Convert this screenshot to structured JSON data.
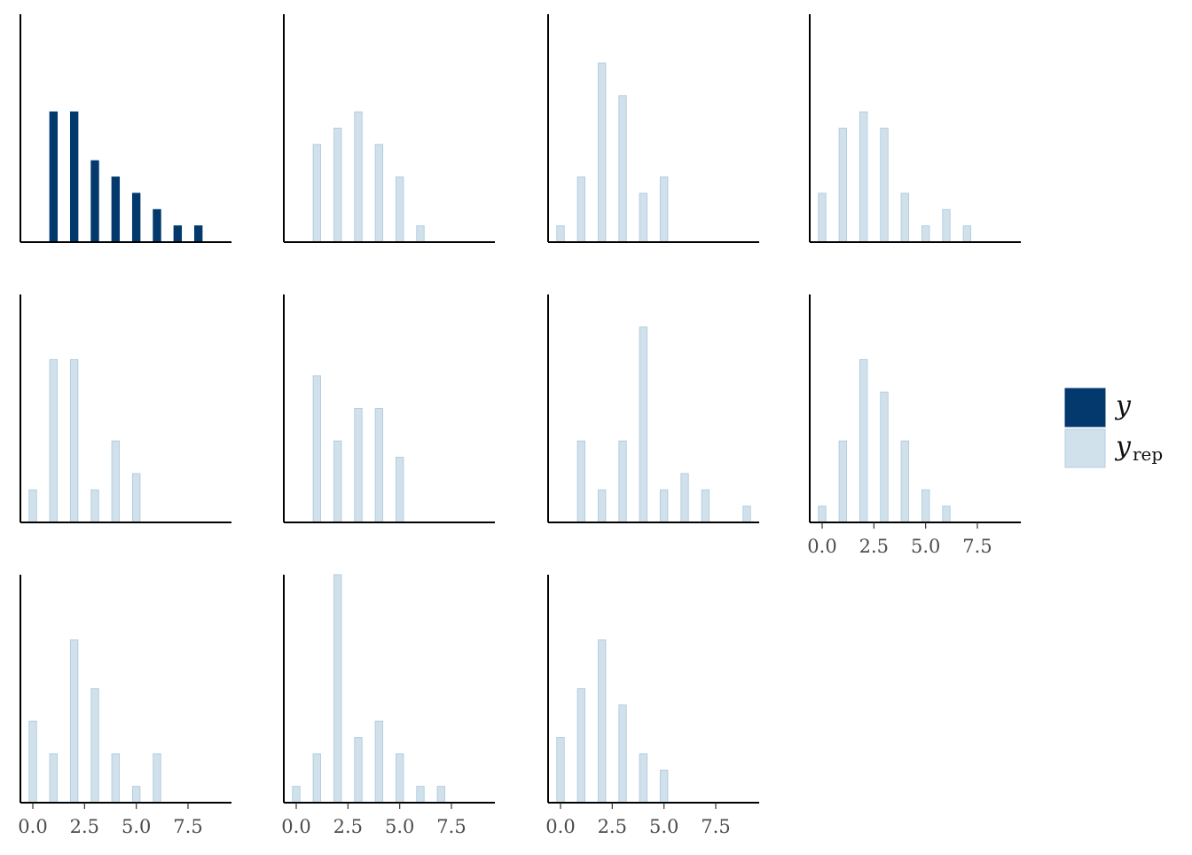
{
  "chart_data": {
    "type": "bar",
    "description_free": true,
    "x_range": [
      -0.6,
      9.6
    ],
    "y_max": 14,
    "x_ticks": [
      0,
      2.5,
      5,
      7.5
    ],
    "x_tick_labels": [
      "0.0",
      "2.5",
      "5.0",
      "7.5"
    ],
    "bar_width": 0.36,
    "grid": false,
    "legend_position": "right",
    "legend": [
      {
        "key": "y",
        "label": "y",
        "subscript": "",
        "color": "#03396c",
        "stroke": "#03396c"
      },
      {
        "key": "yrep",
        "label": "y",
        "subscript": "rep",
        "color": "#d1e1ec",
        "stroke": "#b3cde0"
      }
    ],
    "panels": [
      {
        "series": "y",
        "show_x_ticks": false,
        "counts": {
          "1": 8,
          "2": 8,
          "3": 5,
          "4": 4,
          "5": 3,
          "6": 2,
          "7": 1,
          "8": 1
        }
      },
      {
        "series": "yrep",
        "show_x_ticks": false,
        "counts": {
          "1": 6,
          "2": 7,
          "3": 8,
          "4": 6,
          "5": 4,
          "6": 1
        }
      },
      {
        "series": "yrep",
        "show_x_ticks": false,
        "counts": {
          "0": 1,
          "1": 4,
          "2": 11,
          "3": 9,
          "4": 3,
          "5": 4
        }
      },
      {
        "series": "yrep",
        "show_x_ticks": false,
        "counts": {
          "0": 3,
          "1": 7,
          "2": 8,
          "3": 7,
          "4": 3,
          "5": 1,
          "6": 2,
          "7": 1
        }
      },
      {
        "series": "yrep",
        "show_x_ticks": false,
        "counts": {
          "0": 2,
          "1": 10,
          "2": 10,
          "3": 2,
          "4": 5,
          "5": 3
        }
      },
      {
        "series": "yrep",
        "show_x_ticks": false,
        "counts": {
          "1": 9,
          "2": 5,
          "3": 7,
          "4": 7,
          "5": 4
        }
      },
      {
        "series": "yrep",
        "show_x_ticks": false,
        "counts": {
          "1": 5,
          "2": 2,
          "3": 5,
          "4": 12,
          "5": 2,
          "6": 3,
          "7": 2,
          "9": 1
        }
      },
      {
        "series": "yrep",
        "show_x_ticks": true,
        "counts": {
          "0": 1,
          "1": 5,
          "2": 10,
          "3": 8,
          "4": 5,
          "5": 2,
          "6": 1
        }
      },
      {
        "series": "yrep",
        "show_x_ticks": true,
        "counts": {
          "0": 5,
          "1": 3,
          "2": 10,
          "3": 7,
          "4": 3,
          "5": 1,
          "6": 3
        }
      },
      {
        "series": "yrep",
        "show_x_ticks": true,
        "counts": {
          "0": 1,
          "1": 3,
          "2": 14,
          "3": 4,
          "4": 5,
          "5": 3,
          "6": 1,
          "7": 1
        }
      },
      {
        "series": "yrep",
        "show_x_ticks": true,
        "counts": {
          "0": 4,
          "1": 7,
          "2": 10,
          "3": 6,
          "4": 3,
          "5": 2
        }
      }
    ]
  }
}
